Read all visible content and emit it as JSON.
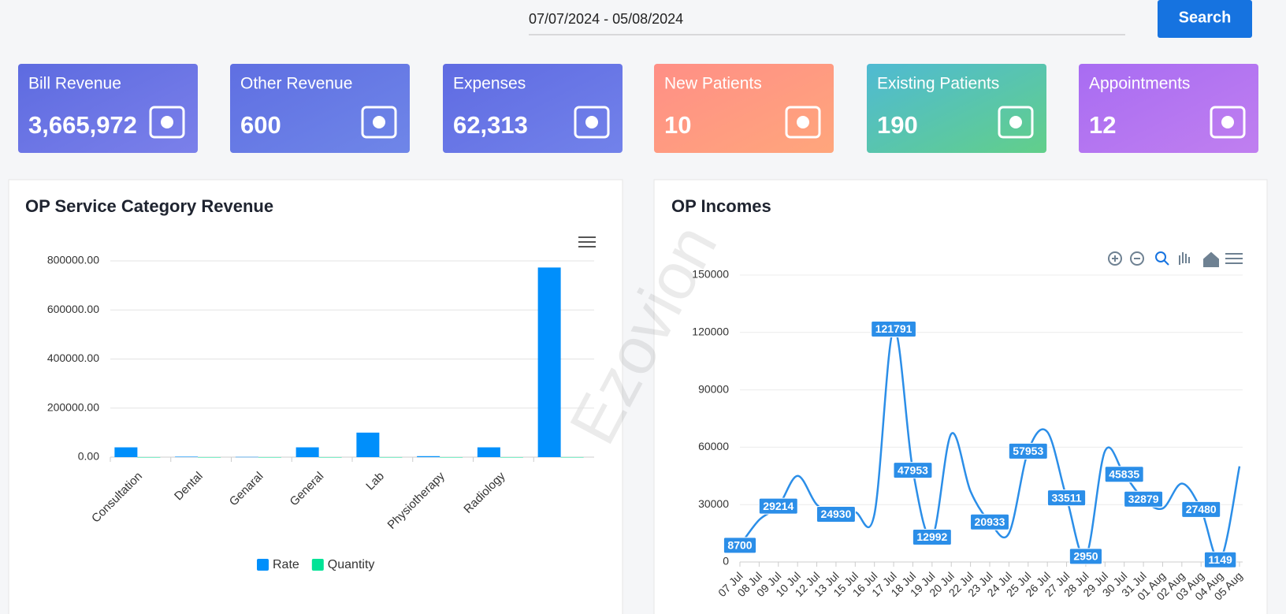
{
  "header": {
    "date_range": "07/07/2024 - 05/08/2024",
    "search_button": "Search"
  },
  "cards": [
    {
      "title": "Bill Revenue",
      "value": "3,665,972",
      "color": [
        "#5d6be0",
        "#7b80ea"
      ]
    },
    {
      "title": "Other Revenue",
      "value": "600",
      "color": [
        "#5f6fe2",
        "#6f86e8"
      ]
    },
    {
      "title": "Expenses",
      "value": "62,313",
      "color": [
        "#5f6be2",
        "#7282ea"
      ]
    },
    {
      "title": "New Patients",
      "value": "10",
      "color": [
        "#ff8f86",
        "#ffa67c"
      ]
    },
    {
      "title": "Existing Patients",
      "value": "190",
      "color": [
        "#4fbad3",
        "#62cf8a"
      ]
    },
    {
      "title": "Appointments",
      "value": "12",
      "color": [
        "#a86cf2",
        "#c07ff0"
      ]
    }
  ],
  "watermark": "Ezovion",
  "chart_data": [
    {
      "type": "bar",
      "title": "OP Service Category Revenue",
      "categories": [
        "Consultation",
        "Dental",
        "Genaral",
        "General",
        "Lab",
        "Physiotherapy",
        "Radiology",
        null
      ],
      "series": [
        {
          "name": "Rate",
          "color": "#008ffb",
          "values": [
            40000,
            2000,
            1000,
            40000,
            100000,
            4000,
            40000,
            773000
          ]
        },
        {
          "name": "Quantity",
          "color": "#00e396",
          "values": [
            60,
            10,
            5,
            30,
            120,
            20,
            15,
            150
          ]
        }
      ],
      "ylim": [
        0,
        800000
      ],
      "yticks": [
        {
          "value": 0,
          "label": "0.00"
        },
        {
          "value": 200000,
          "label": "200000.00"
        },
        {
          "value": 400000,
          "label": "400000.00"
        },
        {
          "value": 600000,
          "label": "600000.00"
        },
        {
          "value": 800000,
          "label": "800000.00"
        }
      ],
      "grid": true,
      "legend": "bottom"
    },
    {
      "type": "line",
      "title": "OP Incomes",
      "categories": [
        "07 Jul",
        "08 Jul",
        "09 Jul",
        "10 Jul",
        "12 Jul",
        "13 Jul",
        "15 Jul",
        "16 Jul",
        "17 Jul",
        "18 Jul",
        "19 Jul",
        "20 Jul",
        "22 Jul",
        "23 Jul",
        "24 Jul",
        "25 Jul",
        "26 Jul",
        "27 Jul",
        "28 Jul",
        "29 Jul",
        "30 Jul",
        "31 Jul",
        "01 Aug",
        "02 Aug",
        "03 Aug",
        "04 Aug",
        "05 Aug"
      ],
      "series": [
        {
          "name": "Income",
          "color": "#2b8ee8",
          "values": [
            8700,
            22000,
            29214,
            45000,
            30000,
            24930,
            26000,
            25000,
            121791,
            47953,
            12992,
            67000,
            37000,
            20933,
            15000,
            57953,
            68000,
            33511,
            2950,
            58000,
            45835,
            32879,
            28000,
            41000,
            27480,
            1149,
            50000
          ],
          "value_labels": [
            "8700",
            null,
            "29214",
            null,
            null,
            "24930",
            null,
            null,
            "121791",
            "47953",
            "12992",
            null,
            null,
            "20933",
            null,
            "57953",
            null,
            "33511",
            "2950",
            null,
            "45835",
            "32879",
            null,
            null,
            "27480",
            "1149",
            null
          ]
        }
      ],
      "ylim": [
        0,
        150000
      ],
      "yticks": [
        0,
        30000,
        60000,
        90000,
        120000,
        150000
      ],
      "grid": true
    }
  ]
}
